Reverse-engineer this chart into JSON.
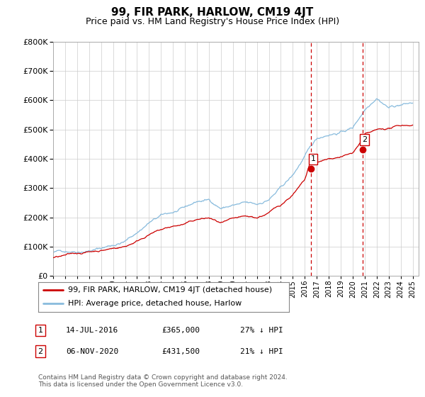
{
  "title": "99, FIR PARK, HARLOW, CM19 4JT",
  "subtitle": "Price paid vs. HM Land Registry's House Price Index (HPI)",
  "ylim": [
    0,
    800000
  ],
  "xlim_start": 1995.0,
  "xlim_end": 2025.5,
  "sale1_x": 2016.536,
  "sale1_y": 365000,
  "sale1_label": "1",
  "sale2_x": 2020.846,
  "sale2_y": 431500,
  "sale2_label": "2",
  "vline1_x": 2016.536,
  "vline2_x": 2020.846,
  "legend_line1": "99, FIR PARK, HARLOW, CM19 4JT (detached house)",
  "legend_line2": "HPI: Average price, detached house, Harlow",
  "ann1_num": "1",
  "ann1_date": "14-JUL-2016",
  "ann1_price": "£365,000",
  "ann1_hpi": "27% ↓ HPI",
  "ann2_num": "2",
  "ann2_date": "06-NOV-2020",
  "ann2_price": "£431,500",
  "ann2_hpi": "21% ↓ HPI",
  "footer": "Contains HM Land Registry data © Crown copyright and database right 2024.\nThis data is licensed under the Open Government Licence v3.0.",
  "line_color_red": "#cc0000",
  "line_color_blue": "#88bbdd",
  "vline_color": "#cc0000",
  "grid_color": "#cccccc",
  "background_color": "#ffffff"
}
